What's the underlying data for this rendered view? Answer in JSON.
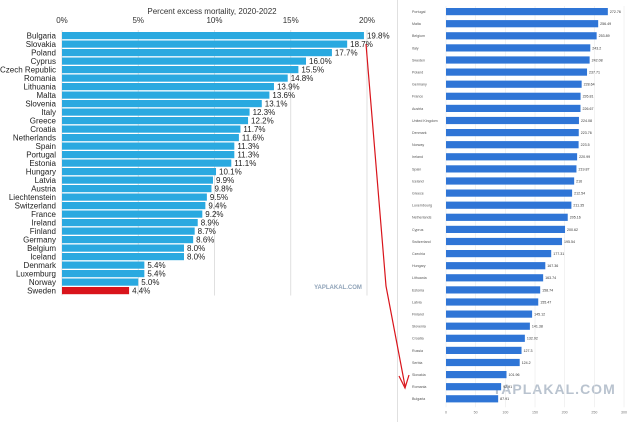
{
  "left_chart": {
    "type": "bar",
    "title": "Percent excess mortality, 2020-2022",
    "xlim": [
      0,
      20
    ],
    "x_ticks": [
      "0%",
      "5%",
      "10%",
      "15%",
      "20%"
    ],
    "categories": [
      "Bulgaria",
      "Slovakia",
      "Poland",
      "Cyprus",
      "Czech Republic",
      "Romania",
      "Lithuania",
      "Malta",
      "Slovenia",
      "Italy",
      "Greece",
      "Croatia",
      "Netherlands",
      "Spain",
      "Portugal",
      "Estonia",
      "Hungary",
      "Latvia",
      "Austria",
      "Liechtenstein",
      "Switzerland",
      "France",
      "Ireland",
      "Finland",
      "Germany",
      "Belgium",
      "Iceland",
      "Denmark",
      "Luxemburg",
      "Norway",
      "Sweden"
    ],
    "values": [
      19.8,
      18.7,
      17.7,
      16.0,
      15.5,
      14.8,
      13.9,
      13.6,
      13.1,
      12.3,
      12.2,
      11.7,
      11.6,
      11.3,
      11.3,
      11.1,
      10.1,
      9.9,
      9.8,
      9.5,
      9.4,
      9.2,
      8.9,
      8.7,
      8.6,
      8.0,
      8.0,
      5.4,
      5.4,
      5.0,
      4.4
    ],
    "value_labels": [
      "19.8%",
      "18.7%",
      "17.7%",
      "16.0%",
      "15.5%",
      "14.8%",
      "13.9%",
      "13.6%",
      "13.1%",
      "12.3%",
      "12.2%",
      "11.7%",
      "11.6%",
      "11.3%",
      "11.3%",
      "11.1%",
      "10.1%",
      "9.9%",
      "9.8%",
      "9.5%",
      "9.4%",
      "9.2%",
      "8.9%",
      "8.7%",
      "8.6%",
      "8.0%",
      "8.0%",
      "5.4%",
      "5.4%",
      "5.0%",
      "4.4%"
    ],
    "highlight_category": "Sweden",
    "colors": {
      "bar": "#29a9e0",
      "highlight": "#d9141b",
      "grid": "#d8d8d8",
      "arrow": "#d9141b"
    },
    "watermark": "YAPLAKAL.COM"
  },
  "right_chart": {
    "type": "bar",
    "xlim": [
      0,
      300
    ],
    "x_ticks": [
      "0",
      "50",
      "100",
      "150",
      "200",
      "250",
      "300"
    ],
    "categories": [
      "Portugal",
      "Malta",
      "Belgium",
      "Italy",
      "Sweden",
      "Poland",
      "Germany",
      "France",
      "Austria",
      "United Kingdom",
      "Denmark",
      "Norway",
      "Ireland",
      "Spain",
      "Iceland",
      "Greece",
      "Luxembourg",
      "Netherlands",
      "Cyprus",
      "Switzerland",
      "Czechia",
      "Hungary",
      "Lithuania",
      "Estonia",
      "Latvia",
      "Finland",
      "Slovenia",
      "Croatia",
      "Russia",
      "Serbia",
      "Slovakia",
      "Romania",
      "Bulgaria"
    ],
    "values": [
      272.76,
      256.49,
      253.89,
      243.2,
      242.08,
      237.71,
      228.64,
      226.81,
      226.67,
      224.08,
      223.76,
      223.5,
      220.99,
      219.87,
      216,
      212.54,
      211.35,
      205.16,
      200.62,
      195.54,
      177.31,
      167.36,
      163.74,
      158.74,
      155.47,
      145.12,
      141.38,
      132.92,
      127.3,
      124.2,
      101.96,
      92.91,
      87.91
    ],
    "value_labels": [
      "272.76",
      "256.49",
      "253.89",
      "243.2",
      "242.08",
      "237.71",
      "228.64",
      "226.81",
      "226.67",
      "224.08",
      "223.76",
      "223.5",
      "220.99",
      "219.87",
      "216",
      "212.54",
      "211.35",
      "205.16",
      "200.62",
      "195.54",
      "177.31",
      "167.36",
      "163.74",
      "158.74",
      "155.47",
      "145.12",
      "141.38",
      "132.92",
      "127.3",
      "124.2",
      "101.96",
      "92.91",
      "87.91"
    ],
    "colors": {
      "bar": "#2f75d6",
      "grid": "#e6e6e6"
    },
    "watermark": "YAPLAKAL.COM"
  }
}
